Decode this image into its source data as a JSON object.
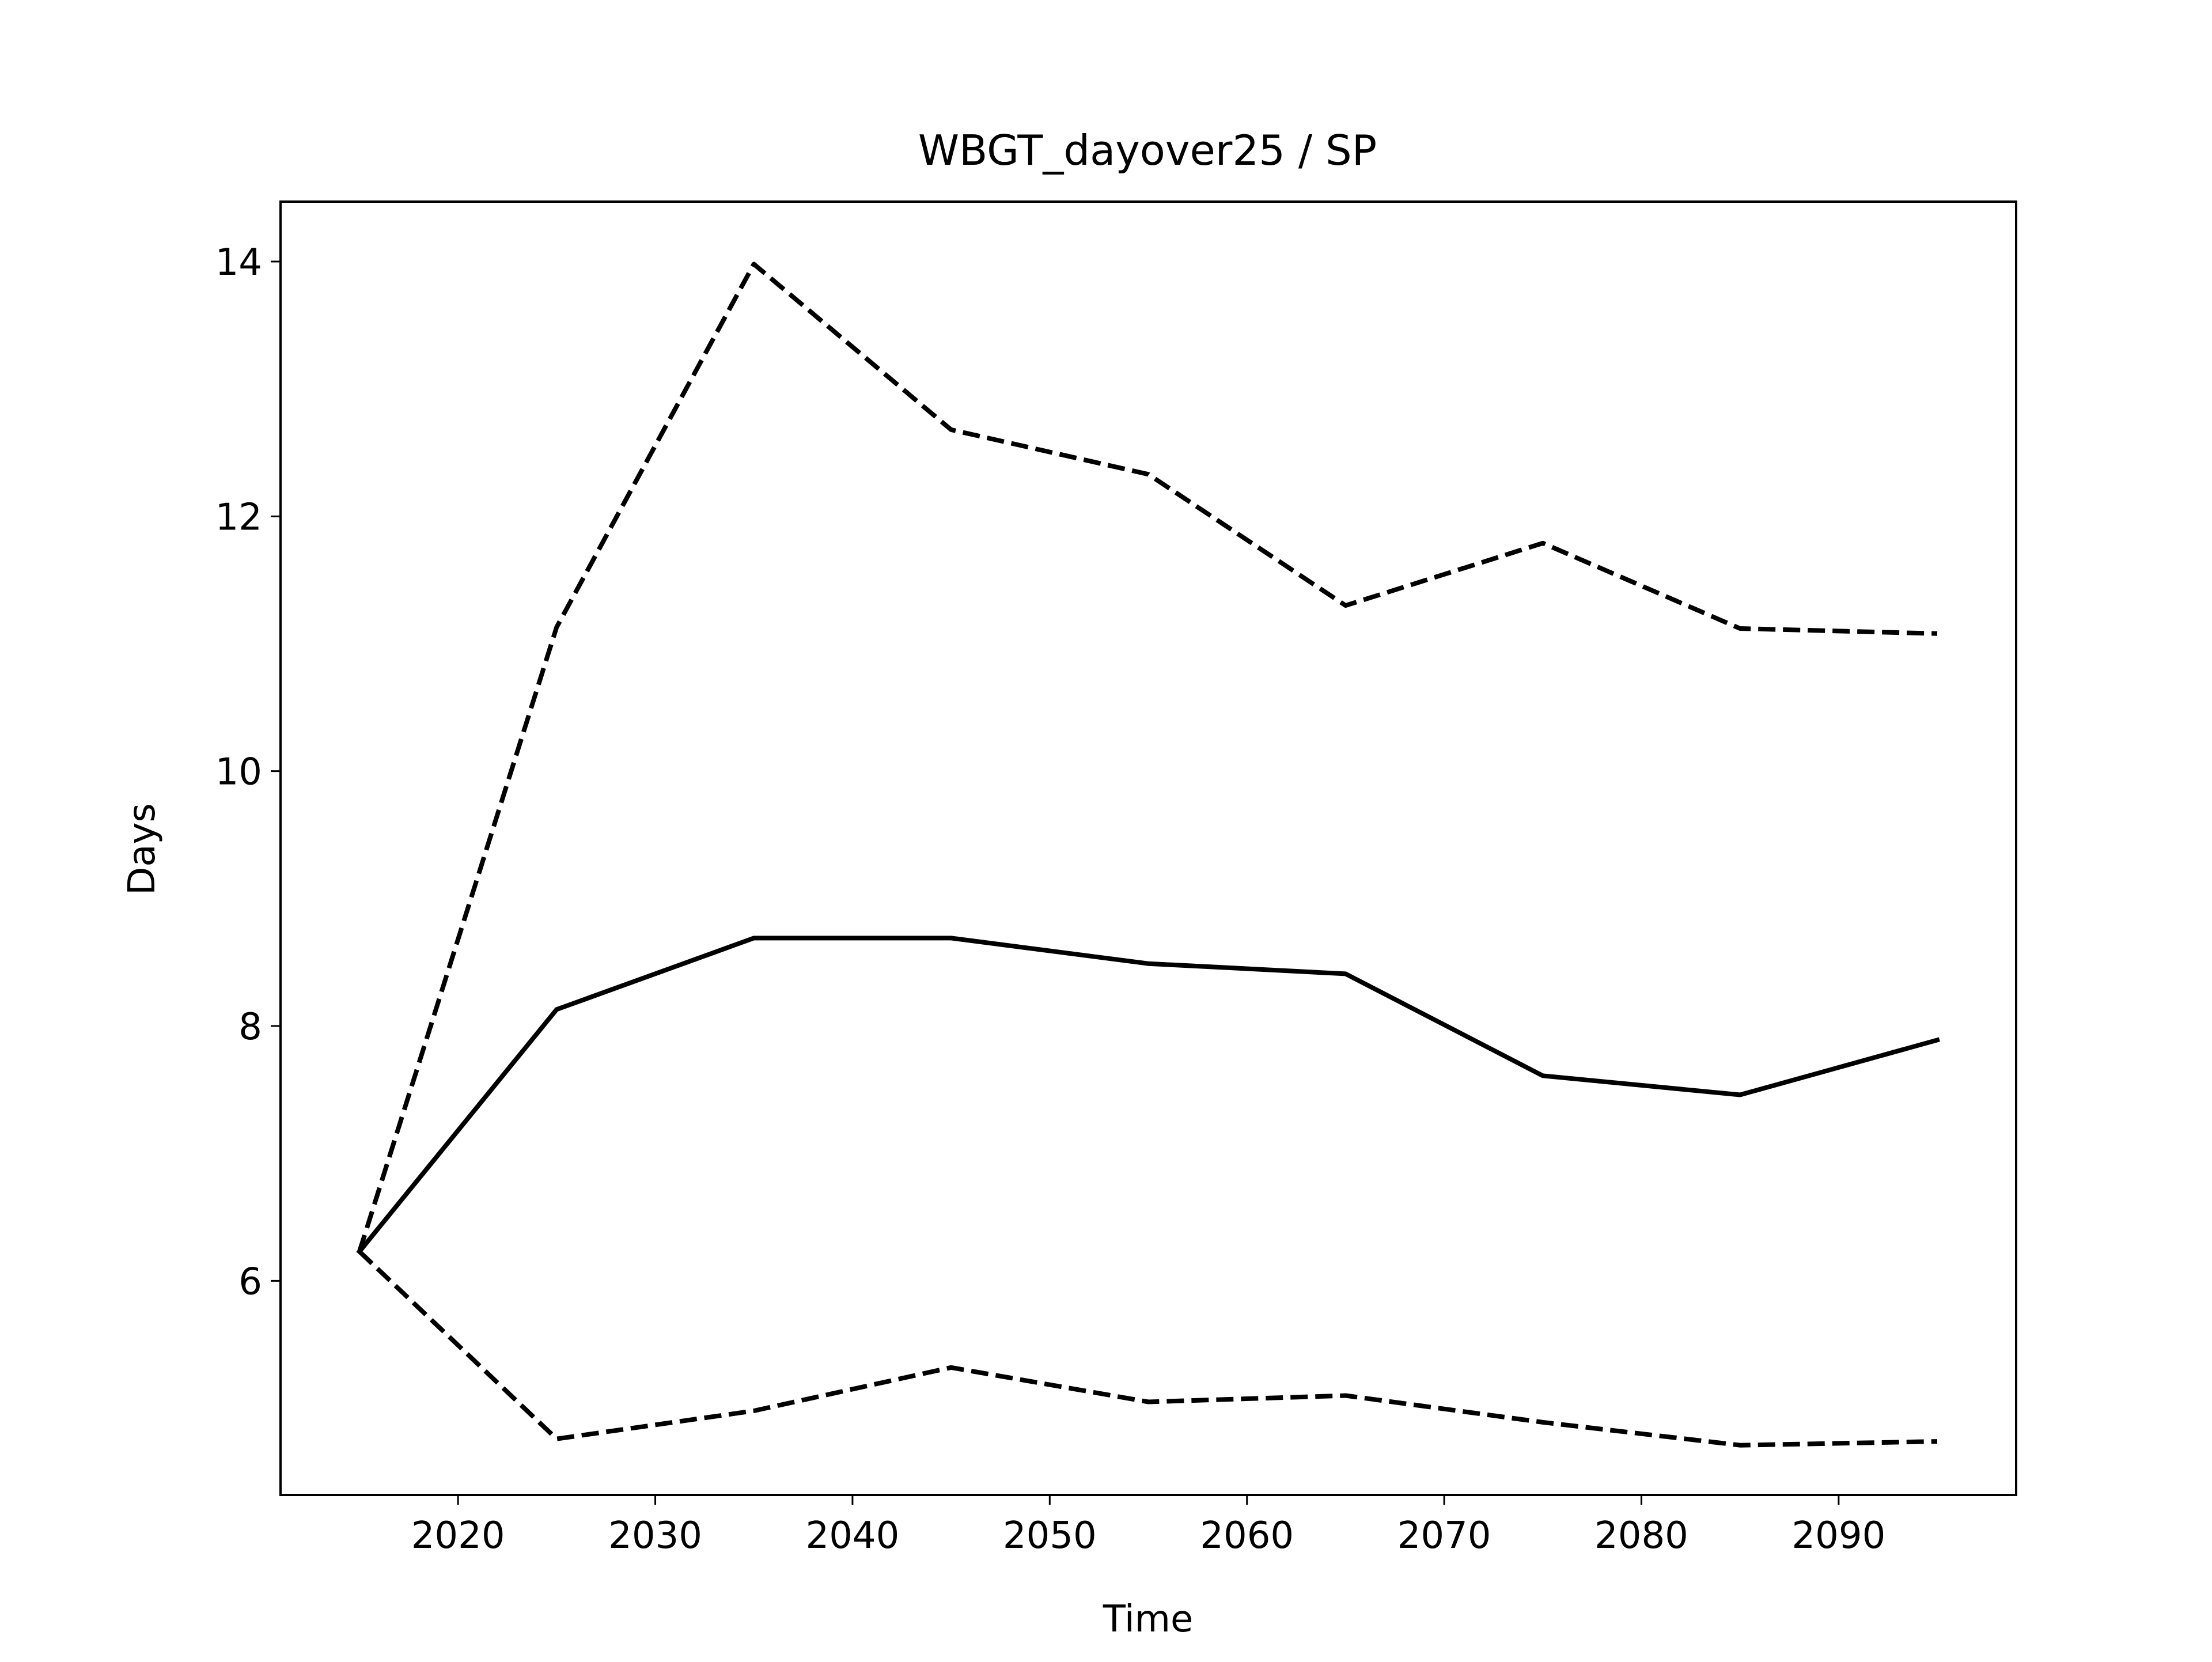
{
  "chart_data": {
    "type": "line",
    "title": "WBGT_dayover25 / SP",
    "xlabel": "Time",
    "ylabel": "Days",
    "xlim": [
      2011,
      2099
    ],
    "ylim": [
      4.32,
      14.47
    ],
    "x_ticks": [
      2020,
      2030,
      2040,
      2050,
      2060,
      2070,
      2080,
      2090
    ],
    "y_ticks": [
      6,
      8,
      10,
      12,
      14
    ],
    "grid": false,
    "legend": "none",
    "x": [
      2015,
      2025,
      2035,
      2045,
      2055,
      2065,
      2075,
      2085,
      2095
    ],
    "series": [
      {
        "line_style": "solid",
        "color": "#000000",
        "values": [
          6.23,
          8.13,
          8.69,
          8.69,
          8.49,
          8.41,
          7.61,
          7.46,
          7.89
        ]
      },
      {
        "line_style": "dashed",
        "color": "#000000",
        "values": [
          6.23,
          11.13,
          13.98,
          12.68,
          12.33,
          11.3,
          11.79,
          11.12,
          11.08
        ]
      },
      {
        "line_style": "dashed",
        "color": "#000000",
        "values": [
          6.23,
          4.76,
          4.98,
          5.32,
          5.05,
          5.1,
          4.89,
          4.71,
          4.74
        ]
      }
    ]
  }
}
